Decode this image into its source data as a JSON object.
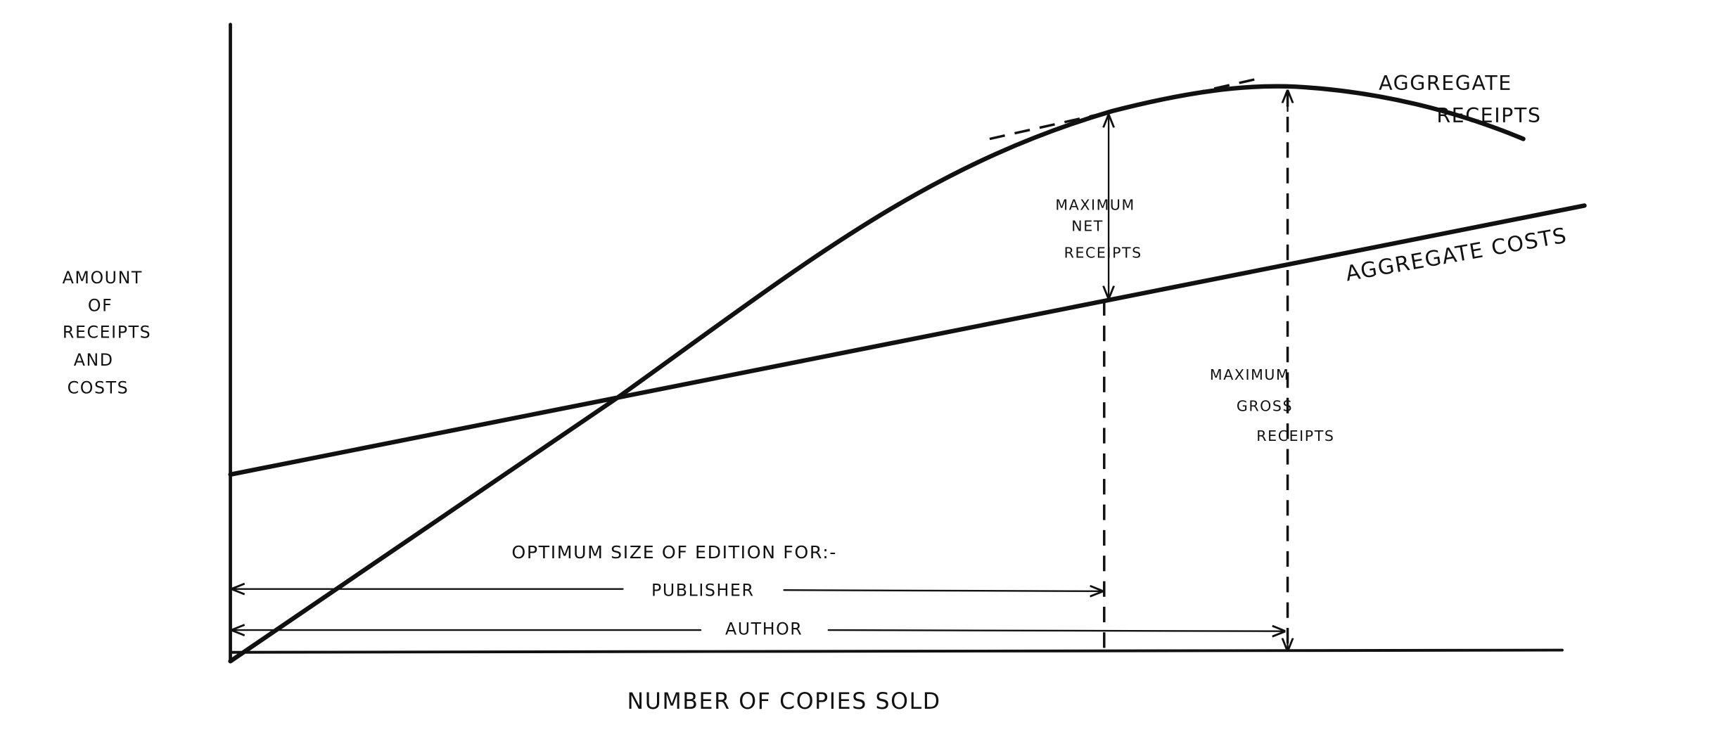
{
  "y_axis_label": [
    "AMOUNT",
    "OF",
    "RECEIPTS",
    "AND",
    "COSTS"
  ],
  "x_axis_label": "NUMBER OF COPIES SOLD",
  "receipts_label": [
    "AGGREGATE",
    "RECEIPTS"
  ],
  "costs_label": "AGGREGATE COSTS",
  "net_label": [
    "MAXIMUM",
    "NET",
    "RECEIPTS"
  ],
  "gross_label": [
    "MAXIMUM",
    "GROSS",
    "RECEIPTS"
  ],
  "optimum_label": "OPTIMUM SIZE OF EDITION FOR:-",
  "publisher_label": "PUBLISHER",
  "author_label": "AUTHOR"
}
